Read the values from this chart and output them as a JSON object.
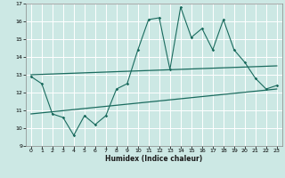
{
  "xlabel": "Humidex (Indice chaleur)",
  "bg_color": "#cce8e4",
  "line_color": "#1a6b5e",
  "grid_color": "#ffffff",
  "xlim": [
    -0.5,
    23.5
  ],
  "ylim": [
    9,
    17
  ],
  "xticks": [
    0,
    1,
    2,
    3,
    4,
    5,
    6,
    7,
    8,
    9,
    10,
    11,
    12,
    13,
    14,
    15,
    16,
    17,
    18,
    19,
    20,
    21,
    22,
    23
  ],
  "yticks": [
    9,
    10,
    11,
    12,
    13,
    14,
    15,
    16,
    17
  ],
  "line1_x": [
    0,
    1,
    2,
    3,
    4,
    5,
    6,
    7,
    8,
    9,
    10,
    11,
    12,
    13,
    14,
    15,
    16,
    17,
    18,
    19,
    20,
    21,
    22,
    23
  ],
  "line1_y": [
    12.9,
    12.5,
    10.8,
    10.6,
    9.6,
    10.7,
    10.2,
    10.7,
    12.2,
    12.5,
    14.4,
    16.1,
    16.2,
    13.3,
    16.8,
    15.1,
    15.6,
    14.4,
    16.1,
    14.4,
    13.7,
    12.8,
    12.2,
    12.4
  ],
  "line2_x": [
    0,
    23
  ],
  "line2_y": [
    13.0,
    13.5
  ],
  "line3_x": [
    0,
    23
  ],
  "line3_y": [
    10.8,
    12.2
  ]
}
